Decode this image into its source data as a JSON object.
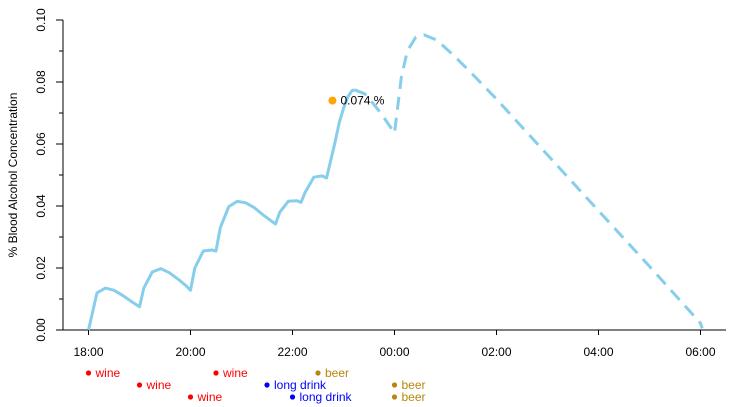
{
  "chart_data": {
    "type": "line",
    "ylabel": "% Blood Alcohol Concentration",
    "ylim": [
      0,
      0.1
    ],
    "y_ticks": [
      {
        "value": 0,
        "label": "0.00"
      },
      {
        "value": 0.02,
        "label": "0.02"
      },
      {
        "value": 0.04,
        "label": "0.04"
      },
      {
        "value": 0.06,
        "label": "0.06"
      },
      {
        "value": 0.08,
        "label": "0.08"
      },
      {
        "value": 0.1,
        "label": "0.10"
      }
    ],
    "y_minor_ticks": [
      0.01,
      0.03,
      0.05,
      0.07,
      0.09
    ],
    "xlim": [
      "17:30",
      "06:30"
    ],
    "x_ticks": [
      "18:00",
      "20:00",
      "22:00",
      "00:00",
      "02:00",
      "04:00",
      "06:00"
    ],
    "line_color": "#87ceeb",
    "series": [
      {
        "style": "solid",
        "points": [
          [
            "18:00",
            0.0
          ],
          [
            "18:10",
            0.012
          ],
          [
            "18:20",
            0.0135
          ],
          [
            "18:30",
            0.0128
          ],
          [
            "18:40",
            0.0112
          ],
          [
            "18:50",
            0.0093
          ],
          [
            "19:00",
            0.0075
          ],
          [
            "19:05",
            0.0135
          ],
          [
            "19:15",
            0.0187
          ],
          [
            "19:25",
            0.0198
          ],
          [
            "19:35",
            0.0185
          ],
          [
            "19:45",
            0.0165
          ],
          [
            "19:55",
            0.0142
          ],
          [
            "20:00",
            0.0128
          ],
          [
            "20:05",
            0.02
          ],
          [
            "20:15",
            0.0255
          ],
          [
            "20:25",
            0.0258
          ],
          [
            "20:30",
            0.0255
          ],
          [
            "20:35",
            0.033
          ],
          [
            "20:45",
            0.0398
          ],
          [
            "20:55",
            0.0415
          ],
          [
            "21:05",
            0.041
          ],
          [
            "21:15",
            0.0395
          ],
          [
            "21:25",
            0.0372
          ],
          [
            "21:35",
            0.0352
          ],
          [
            "21:40",
            0.0342
          ],
          [
            "21:45",
            0.038
          ],
          [
            "21:55",
            0.0415
          ],
          [
            "22:05",
            0.0417
          ],
          [
            "22:10",
            0.0412
          ],
          [
            "22:15",
            0.0445
          ],
          [
            "22:25",
            0.0493
          ],
          [
            "22:35",
            0.0497
          ],
          [
            "22:40",
            0.049
          ],
          [
            "22:50",
            0.0605
          ],
          [
            "22:55",
            0.067
          ],
          [
            "23:00",
            0.0715
          ],
          [
            "23:05",
            0.0752
          ],
          [
            "23:10",
            0.0772
          ],
          [
            "23:13",
            0.0775
          ]
        ]
      },
      {
        "style": "dashed",
        "points": [
          [
            "23:13",
            0.0775
          ],
          [
            "23:25",
            0.0762
          ],
          [
            "23:35",
            0.073
          ],
          [
            "23:45",
            0.0695
          ],
          [
            "23:55",
            0.0655
          ],
          [
            "00:00",
            0.0635
          ],
          [
            "00:02",
            0.068
          ],
          [
            "00:08",
            0.0815
          ],
          [
            "00:15",
            0.09
          ],
          [
            "00:25",
            0.0945
          ],
          [
            "00:35",
            0.0952
          ],
          [
            "00:50",
            0.0935
          ],
          [
            "01:10",
            0.0885
          ],
          [
            "01:30",
            0.083
          ],
          [
            "02:00",
            0.0745
          ],
          [
            "03:00",
            0.0565
          ],
          [
            "04:00",
            0.0385
          ],
          [
            "05:00",
            0.0205
          ],
          [
            "06:00",
            0.0022
          ],
          [
            "06:02",
            0.0005
          ]
        ]
      }
    ],
    "marker": {
      "time": "22:47",
      "value": 0.074,
      "label": "0.074 %",
      "color": "#ffa500"
    },
    "drinks": [
      {
        "time": "18:00",
        "row": 0,
        "label": "wine",
        "color": "#ff0000"
      },
      {
        "time": "19:00",
        "row": 1,
        "label": "wine",
        "color": "#ff0000"
      },
      {
        "time": "20:00",
        "row": 2,
        "label": "wine",
        "color": "#ff0000"
      },
      {
        "time": "20:30",
        "row": 0,
        "label": "wine",
        "color": "#ff0000"
      },
      {
        "time": "21:30",
        "row": 1,
        "label": "long drink",
        "color": "#0000ff"
      },
      {
        "time": "22:00",
        "row": 2,
        "label": "long drink",
        "color": "#0000ff"
      },
      {
        "time": "22:30",
        "row": 0,
        "label": "beer",
        "color": "#b8860b"
      },
      {
        "time": "00:00",
        "row": 1,
        "label": "beer",
        "color": "#b8860b"
      },
      {
        "time": "00:00",
        "row": 2,
        "label": "beer",
        "color": "#b8860b"
      }
    ]
  }
}
